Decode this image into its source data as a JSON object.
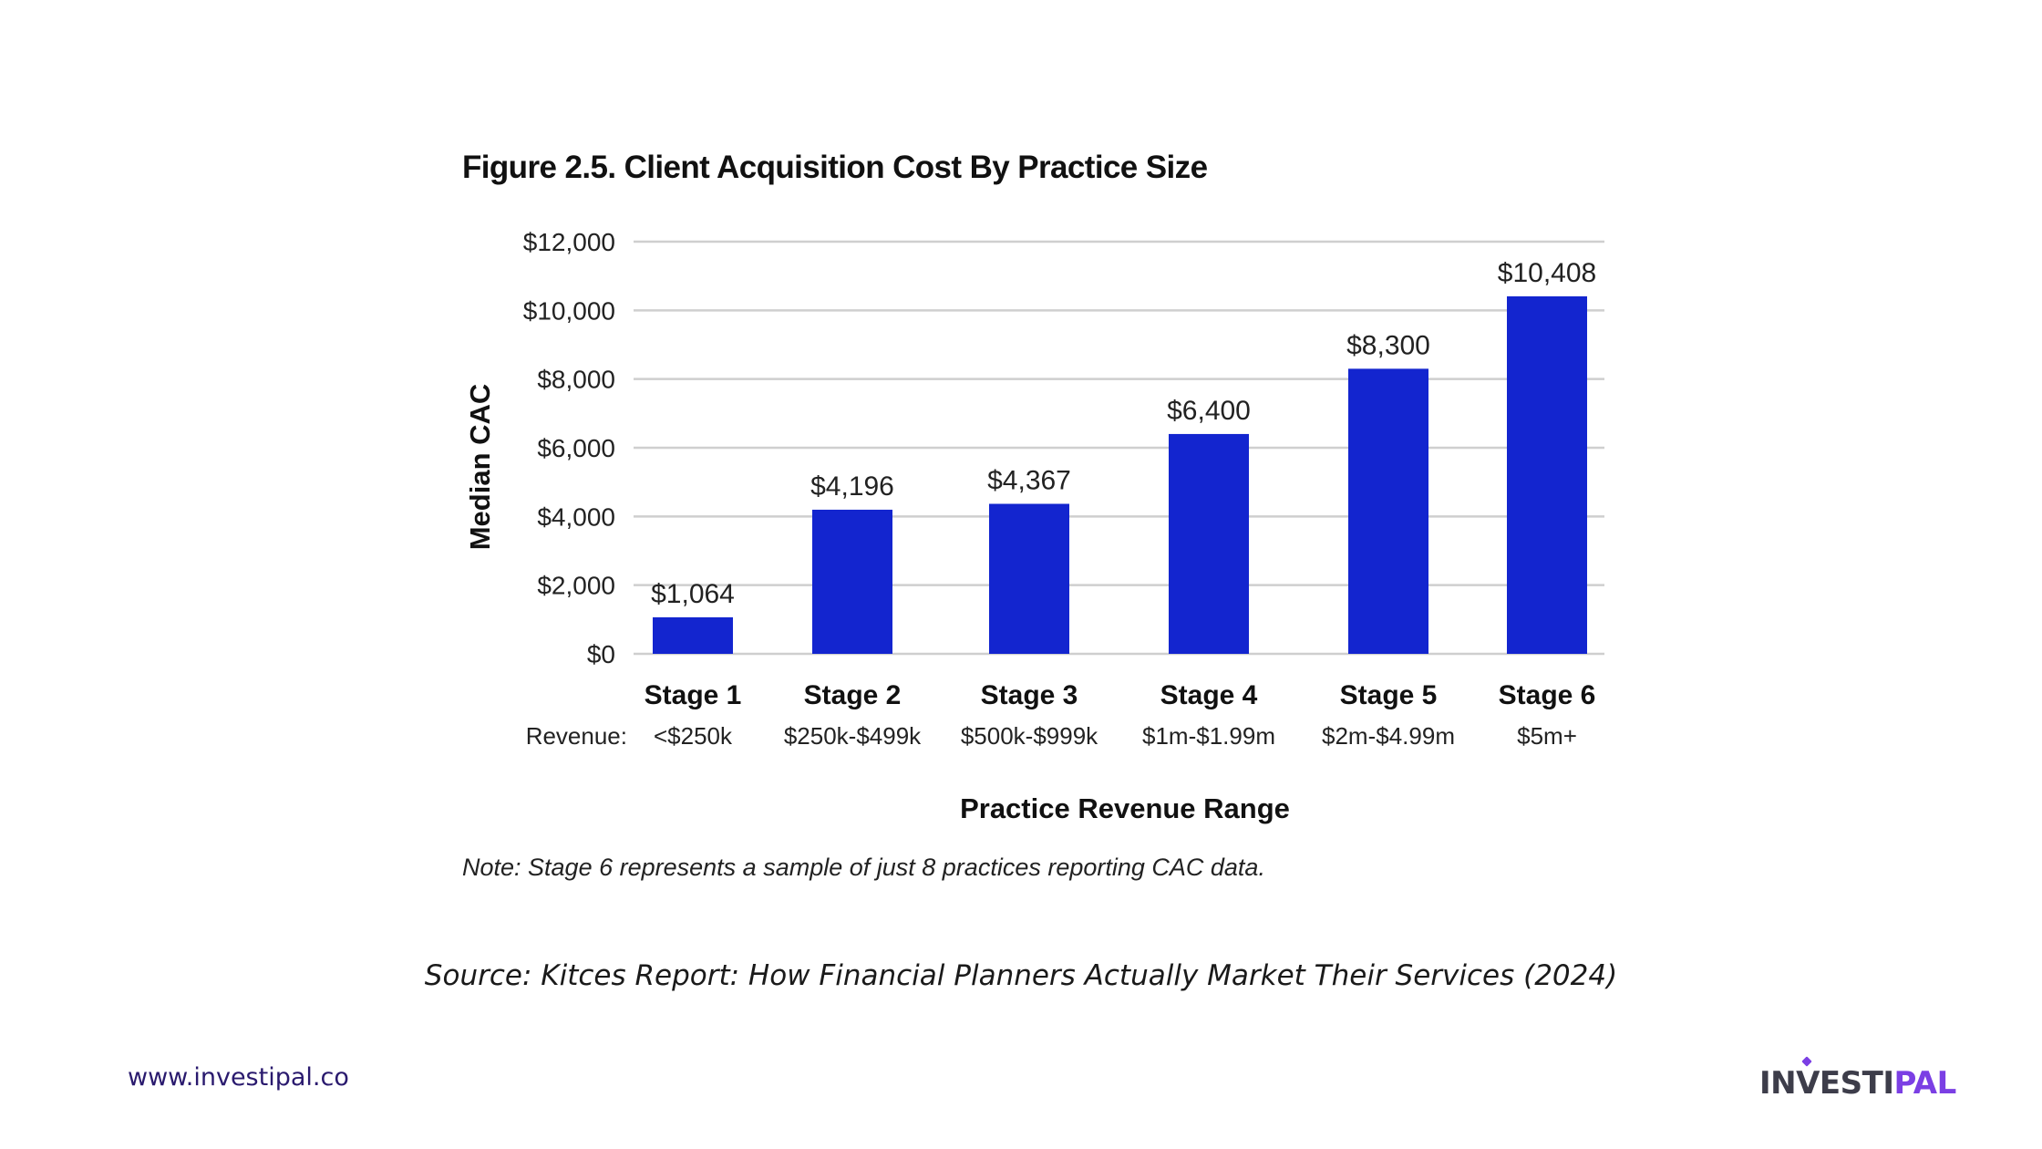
{
  "figure_title": "Figure 2.5. Client Acquisition Cost By Practice Size",
  "note": "Note: Stage 6 represents a sample of just 8 practices reporting CAC data.",
  "source": "Source: Kitces Report: How Financial Planners Actually Market Their Services (2024)",
  "footer": {
    "website": "www.investipal.co",
    "logo_part_a": "INVESTI",
    "logo_part_b": "PAL"
  },
  "colors": {
    "bar": "#1325cf",
    "gridline": "#cfcfcf",
    "logo_dark": "#3d3d4a",
    "logo_accent": "#7b3fe4"
  },
  "chart_data": {
    "type": "bar",
    "title": "Figure 2.5. Client Acquisition Cost By Practice Size",
    "xlabel": "Practice Revenue Range",
    "ylabel": "Median CAC",
    "categories": [
      "Stage 1",
      "Stage 2",
      "Stage 3",
      "Stage 4",
      "Stage 5",
      "Stage 6"
    ],
    "revenue_prefix": "Revenue:",
    "revenue_ranges": [
      "<$250k",
      "$250k-$499k",
      "$500k-$999k",
      "$1m-$1.99m",
      "$2m-$4.99m",
      "$5m+"
    ],
    "values": [
      1064,
      4196,
      4367,
      6400,
      8300,
      10408
    ],
    "value_labels": [
      "$1,064",
      "$4,196",
      "$4,367",
      "$6,400",
      "$8,300",
      "$10,408"
    ],
    "ylim": [
      0,
      12000
    ],
    "yticks": [
      0,
      2000,
      4000,
      6000,
      8000,
      10000,
      12000
    ],
    "ytick_labels": [
      "$0",
      "$2,000",
      "$4,000",
      "$6,000",
      "$8,000",
      "$10,000",
      "$12,000"
    ],
    "grid": true,
    "legend": "none"
  }
}
